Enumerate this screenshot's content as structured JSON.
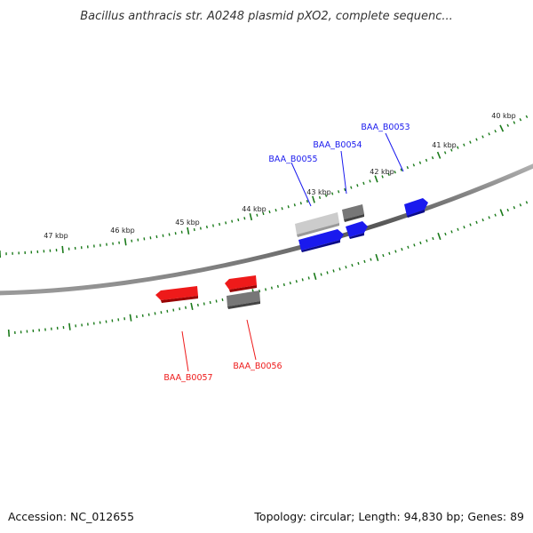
{
  "title": "Bacillus anthracis str. A0248 plasmid pXO2, complete sequenc...",
  "footer": {
    "accession": "Accession: NC_012655",
    "summary": "Topology: circular; Length: 94,830 bp; Genes: 89"
  },
  "colors": {
    "forward_strand": "#1a1aee",
    "reverse_strand": "#ee1a1a",
    "other_feature": "#666666",
    "tick": "#1a7a1a",
    "backbone": "#888888"
  },
  "scale_labels": [
    "40 kbp",
    "41 kbp",
    "42 kbp",
    "43 kbp",
    "44 kbp",
    "45 kbp",
    "46 kbp",
    "47 kbp"
  ],
  "genes": [
    {
      "label": "BAA_B0053",
      "strand": "forward"
    },
    {
      "label": "BAA_B0054",
      "strand": "forward"
    },
    {
      "label": "BAA_B0055",
      "strand": "forward"
    },
    {
      "label": "BAA_B0056",
      "strand": "reverse"
    },
    {
      "label": "BAA_B0057",
      "strand": "reverse"
    }
  ]
}
